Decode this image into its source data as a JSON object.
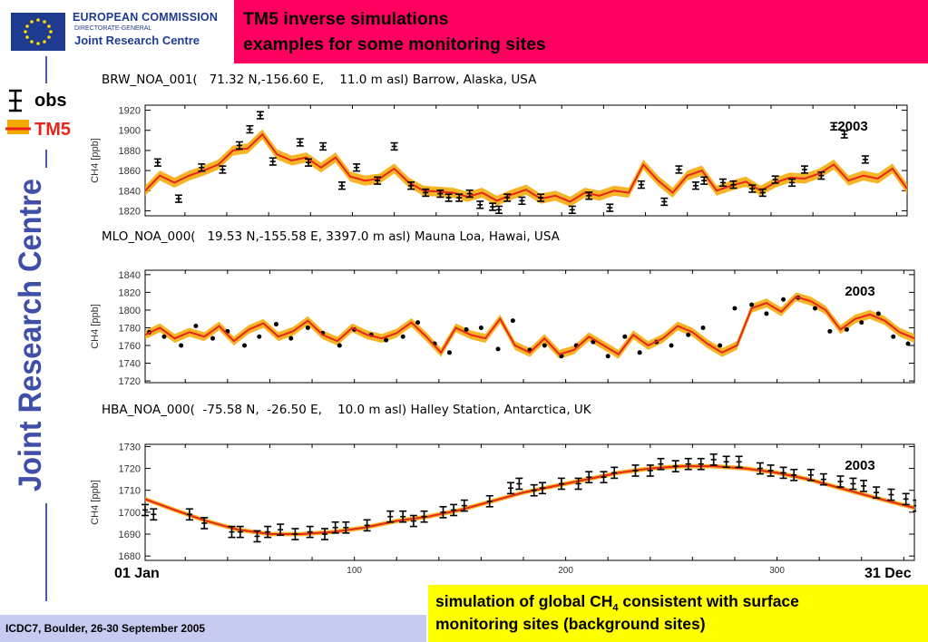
{
  "header": {
    "org_name": "EUROPEAN COMMISSION",
    "org_sub": "DIRECTORATE-GENERAL",
    "org_unit": "Joint Research Centre",
    "title_line1": "TM5 inverse simulations",
    "title_line2": "examples for some monitoring sites"
  },
  "sidebar": {
    "vertical_text": "Joint Research Centre"
  },
  "legend": {
    "obs": "obs",
    "model": "TM5"
  },
  "colors": {
    "title_bg": "#ff0060",
    "model": "#e8251a",
    "model_spread": "#f5a800",
    "obs": "#000000",
    "note_bg": "#ffff00",
    "footer_bg": "#c7cbf2",
    "brand_blue": "#1f3b8f"
  },
  "footer": {
    "text": "ICDC7, Boulder, 26-30 September 2005"
  },
  "note": {
    "line1_prefix": "simulation of global CH",
    "line1_sub": "4",
    "line1_suffix": " consistent with surface",
    "line2": "monitoring sites (background sites)"
  },
  "axis_labels": {
    "x_start": "01 Jan",
    "x_end": "31 Dec"
  },
  "chart_data": [
    {
      "type": "line",
      "title": "BRW_NOA_001(   71.32 N,-156.60 E,    11.0 m asl) Barrow, Alaska, USA",
      "ylabel": "CH4 [ppb]",
      "annotation": "2003",
      "xlim": [
        1,
        365
      ],
      "ylim": [
        1815,
        1925
      ],
      "yticks": [
        1820,
        1840,
        1860,
        1880,
        1900,
        1920
      ],
      "series": [
        {
          "name": "obs",
          "style": "errorbar",
          "x": [
            7,
            17,
            28,
            38,
            46,
            51,
            56,
            62,
            75,
            79,
            86,
            95,
            102,
            112,
            120,
            128,
            135,
            142,
            146,
            151,
            156,
            161,
            167,
            170,
            174,
            181,
            190,
            205,
            213,
            223,
            238,
            249,
            256,
            264,
            268,
            277,
            282,
            291,
            296,
            302,
            310,
            316,
            324,
            330,
            335,
            345
          ],
          "y": [
            1868,
            1832,
            1863,
            1861,
            1885,
            1901,
            1915,
            1869,
            1888,
            1868,
            1884,
            1845,
            1863,
            1850,
            1884,
            1845,
            1838,
            1837,
            1833,
            1833,
            1837,
            1826,
            1824,
            1821,
            1833,
            1830,
            1833,
            1821,
            1835,
            1823,
            1846,
            1829,
            1861,
            1845,
            1850,
            1848,
            1846,
            1842,
            1838,
            1851,
            1848,
            1861,
            1855,
            1904,
            1896,
            1871
          ]
        },
        {
          "name": "TM5",
          "style": "line",
          "x": [
            1,
            8,
            15,
            22,
            29,
            36,
            43,
            50,
            57,
            64,
            71,
            78,
            85,
            92,
            99,
            106,
            113,
            120,
            127,
            134,
            141,
            148,
            155,
            162,
            169,
            176,
            183,
            190,
            197,
            204,
            211,
            218,
            225,
            232,
            239,
            246,
            253,
            260,
            267,
            274,
            281,
            288,
            295,
            302,
            309,
            316,
            323,
            330,
            337,
            344,
            351,
            358,
            365
          ],
          "y": [
            1840,
            1855,
            1848,
            1855,
            1860,
            1866,
            1880,
            1882,
            1896,
            1876,
            1870,
            1873,
            1863,
            1873,
            1854,
            1850,
            1852,
            1862,
            1848,
            1840,
            1839,
            1838,
            1834,
            1838,
            1830,
            1836,
            1841,
            1832,
            1835,
            1829,
            1838,
            1835,
            1840,
            1838,
            1866,
            1850,
            1838,
            1855,
            1860,
            1840,
            1845,
            1849,
            1840,
            1848,
            1853,
            1852,
            1857,
            1866,
            1850,
            1855,
            1852,
            1862,
            1842
          ]
        }
      ]
    },
    {
      "type": "line",
      "title": "MLO_NOA_000(   19.53 N,-155.58 E, 3397.0 m asl) Mauna Loa, Hawai, USA",
      "ylabel": "CH4 [ppb]",
      "annotation": "2003",
      "xlim": [
        1,
        365
      ],
      "ylim": [
        1718,
        1845
      ],
      "yticks": [
        1720,
        1740,
        1760,
        1780,
        1800,
        1820,
        1840
      ],
      "series": [
        {
          "name": "obs",
          "style": "points",
          "x": [
            3,
            10,
            18,
            25,
            33,
            40,
            48,
            55,
            63,
            70,
            78,
            85,
            93,
            100,
            108,
            115,
            123,
            130,
            138,
            145,
            153,
            160,
            168,
            175,
            183,
            190,
            198,
            205,
            213,
            220,
            228,
            235,
            243,
            250,
            258,
            265,
            273,
            280,
            288,
            295,
            303,
            310,
            318,
            325,
            333,
            340,
            348,
            355,
            362
          ],
          "y": [
            1775,
            1770,
            1760,
            1782,
            1768,
            1776,
            1760,
            1770,
            1784,
            1768,
            1780,
            1774,
            1760,
            1778,
            1772,
            1766,
            1770,
            1786,
            1762,
            1752,
            1778,
            1780,
            1756,
            1788,
            1755,
            1760,
            1748,
            1760,
            1764,
            1748,
            1770,
            1752,
            1764,
            1760,
            1772,
            1780,
            1760,
            1802,
            1806,
            1796,
            1812,
            1814,
            1802,
            1776,
            1778,
            1786,
            1796,
            1770,
            1762
          ]
        },
        {
          "name": "TM5",
          "style": "line",
          "x": [
            1,
            8,
            15,
            22,
            29,
            36,
            43,
            50,
            57,
            64,
            71,
            78,
            85,
            92,
            99,
            106,
            113,
            120,
            127,
            134,
            141,
            148,
            155,
            162,
            169,
            176,
            183,
            190,
            197,
            204,
            211,
            218,
            225,
            232,
            239,
            246,
            253,
            260,
            267,
            274,
            281,
            288,
            295,
            302,
            309,
            316,
            323,
            330,
            337,
            344,
            351,
            358,
            365
          ],
          "y": [
            1772,
            1780,
            1768,
            1775,
            1770,
            1782,
            1765,
            1778,
            1785,
            1770,
            1776,
            1788,
            1772,
            1765,
            1780,
            1772,
            1768,
            1774,
            1786,
            1770,
            1752,
            1780,
            1772,
            1768,
            1790,
            1760,
            1752,
            1768,
            1750,
            1755,
            1770,
            1760,
            1750,
            1772,
            1760,
            1768,
            1782,
            1775,
            1762,
            1752,
            1760,
            1802,
            1808,
            1798,
            1815,
            1810,
            1800,
            1778,
            1790,
            1795,
            1788,
            1775,
            1768
          ]
        }
      ]
    },
    {
      "type": "line",
      "title": "HBA_NOA_000(  -75.58 N,  -26.50 E,    10.0 m asl) Halley Station, Antarctica, UK",
      "ylabel": "CH4 [ppb]",
      "annotation": "2003",
      "xlim": [
        1,
        365
      ],
      "ylim": [
        1678,
        1731
      ],
      "yticks": [
        1680,
        1690,
        1700,
        1710,
        1720,
        1730
      ],
      "xticks": [
        100,
        200,
        300
      ],
      "series": [
        {
          "name": "obs",
          "style": "errorbar",
          "x": [
            1,
            5,
            22,
            29,
            42,
            46,
            54,
            59,
            65,
            72,
            79,
            86,
            91,
            96,
            106,
            117,
            123,
            128,
            133,
            142,
            147,
            152,
            164,
            174,
            178,
            185,
            189,
            198,
            206,
            211,
            218,
            223,
            233,
            240,
            245,
            252,
            258,
            264,
            270,
            276,
            282,
            292,
            297,
            303,
            308,
            316,
            322,
            330,
            336,
            341,
            347,
            354,
            361,
            366
          ],
          "y": [
            1701,
            1699,
            1699,
            1695,
            1691,
            1691,
            1689,
            1691,
            1692,
            1690,
            1691,
            1690,
            1693,
            1693,
            1694,
            1698,
            1698,
            1696,
            1698,
            1700,
            1701,
            1703,
            1705,
            1711,
            1713,
            1710,
            1711,
            1713,
            1713,
            1716,
            1716,
            1718,
            1719,
            1719,
            1722,
            1721,
            1722,
            1722,
            1724,
            1723,
            1723,
            1720,
            1719,
            1718,
            1717,
            1717,
            1715,
            1714,
            1713,
            1712,
            1709,
            1708,
            1706,
            1703
          ]
        },
        {
          "name": "TM5",
          "style": "line",
          "x": [
            1,
            15,
            30,
            45,
            60,
            75,
            90,
            105,
            120,
            135,
            150,
            165,
            180,
            195,
            210,
            225,
            240,
            255,
            270,
            285,
            300,
            315,
            330,
            345,
            365
          ],
          "y": [
            1706,
            1701,
            1696,
            1692,
            1690,
            1690,
            1691,
            1693,
            1696,
            1698,
            1701,
            1705,
            1709,
            1712,
            1715,
            1718,
            1720,
            1721,
            1721,
            1720,
            1718,
            1715,
            1711,
            1707,
            1702
          ]
        }
      ]
    }
  ]
}
